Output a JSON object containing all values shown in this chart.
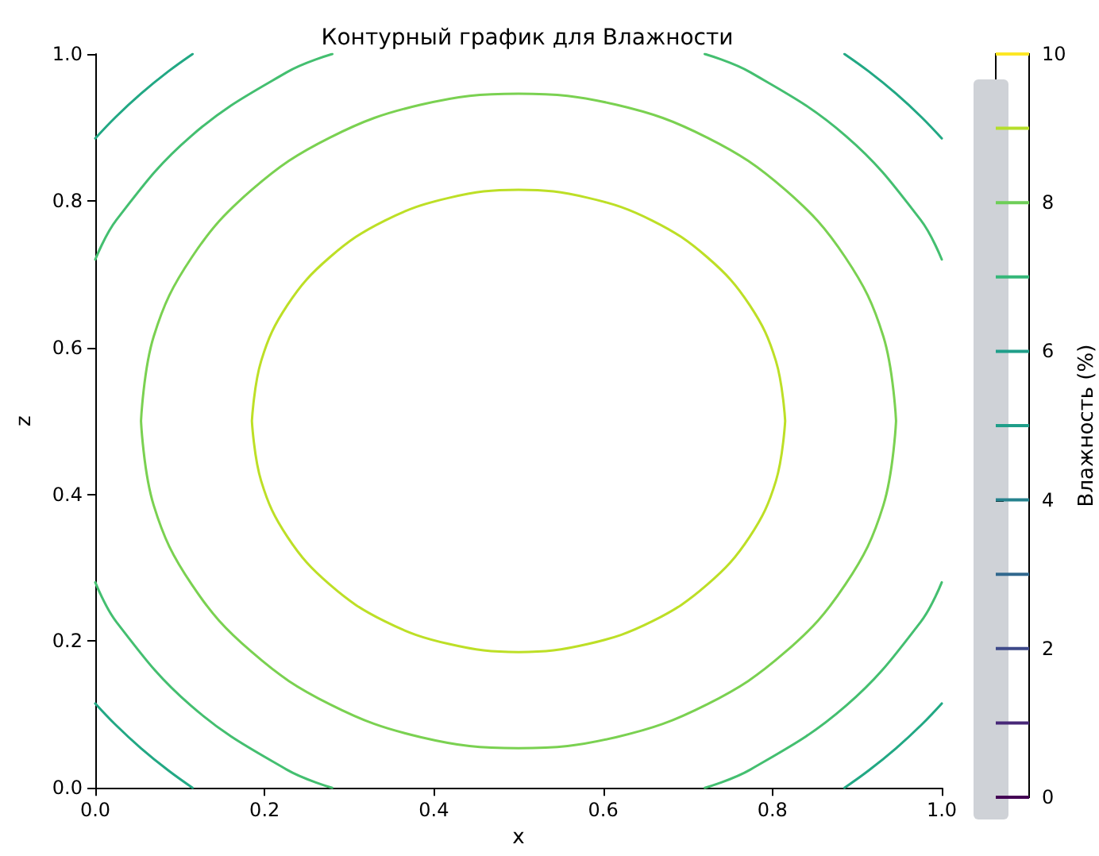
{
  "chart_data": {
    "type": "line",
    "title": "Контурный график для Влажности",
    "xlabel": "x",
    "ylabel": "z",
    "clabel": "Влажность (%)",
    "xlim": [
      0,
      1
    ],
    "ylim": [
      0,
      1
    ],
    "xticks": [
      {
        "value": 0,
        "label": "0.0"
      },
      0.2,
      0.4,
      0.6,
      0.8,
      {
        "value": 1,
        "label": "1.0"
      }
    ],
    "yticks": [
      {
        "value": 0,
        "label": "0.0"
      },
      0.2,
      0.4,
      0.6,
      0.8,
      {
        "value": 1,
        "label": "1.0"
      }
    ],
    "clim": [
      0,
      10
    ],
    "cticks": [
      0,
      2,
      4,
      6,
      8,
      10
    ],
    "grid": false,
    "series": [
      {
        "color": "#22a884",
        "x": [
          0,
          0.024,
          0.054,
          0.086,
          0.115,
          null,
          0.885,
          0.914,
          0.946,
          0.976,
          1,
          null,
          1,
          0.976,
          0.946,
          0.914,
          0.885,
          null,
          0.115,
          0.086,
          0.054,
          0.024,
          0
        ],
        "values": [
          0.885,
          0.914,
          0.946,
          0.976,
          1,
          null,
          1,
          0.976,
          0.946,
          0.914,
          0.885,
          null,
          0.115,
          0.086,
          0.054,
          0.024,
          0,
          null,
          0,
          0.024,
          0.054,
          0.086,
          0.115
        ]
      },
      {
        "color": "#44bf70",
        "x": [
          0,
          0.025,
          0.113,
          0.226,
          0.28,
          null,
          0.72,
          0.774,
          0.887,
          0.975,
          1,
          null,
          1,
          0.975,
          0.887,
          0.774,
          0.72,
          null,
          0.28,
          0.226,
          0.113,
          0.025,
          0
        ],
        "values": [
          0.72,
          0.774,
          0.888,
          0.975,
          1,
          null,
          1,
          0.975,
          0.888,
          0.774,
          0.72,
          null,
          0.28,
          0.226,
          0.112,
          0.025,
          0,
          null,
          0,
          0.025,
          0.112,
          0.226,
          0.28
        ]
      },
      {
        "color": "#7ad151",
        "x": [
          0.946,
          0.931,
          0.886,
          0.815,
          0.723,
          0.615,
          0.5,
          0.385,
          0.277,
          0.185,
          0.114,
          0.069,
          0.054,
          null,
          0.054,
          0.069,
          0.114,
          0.185,
          0.277,
          0.385,
          0.5,
          0.615,
          0.723,
          0.815,
          0.886,
          0.931,
          0.946
        ],
        "values": [
          0.5,
          0.615,
          0.723,
          0.815,
          0.886,
          0.931,
          0.946,
          0.931,
          0.886,
          0.815,
          0.723,
          0.615,
          0.5,
          null,
          0.5,
          0.385,
          0.277,
          0.185,
          0.114,
          0.069,
          0.054,
          0.069,
          0.114,
          0.185,
          0.277,
          0.385,
          0.5
        ]
      },
      {
        "color": "#bddf26",
        "x": [
          0.815,
          0.804,
          0.773,
          0.723,
          0.658,
          0.582,
          0.5,
          0.418,
          0.342,
          0.277,
          0.227,
          0.196,
          0.185,
          null,
          0.185,
          0.196,
          0.227,
          0.277,
          0.342,
          0.418,
          0.5,
          0.582,
          0.658,
          0.723,
          0.773,
          0.804,
          0.815
        ],
        "values": [
          0.5,
          0.582,
          0.658,
          0.723,
          0.773,
          0.804,
          0.815,
          0.804,
          0.773,
          0.723,
          0.658,
          0.582,
          0.5,
          null,
          0.5,
          0.418,
          0.342,
          0.277,
          0.227,
          0.196,
          0.185,
          0.196,
          0.227,
          0.277,
          0.342,
          0.418,
          0.5
        ]
      }
    ]
  }
}
